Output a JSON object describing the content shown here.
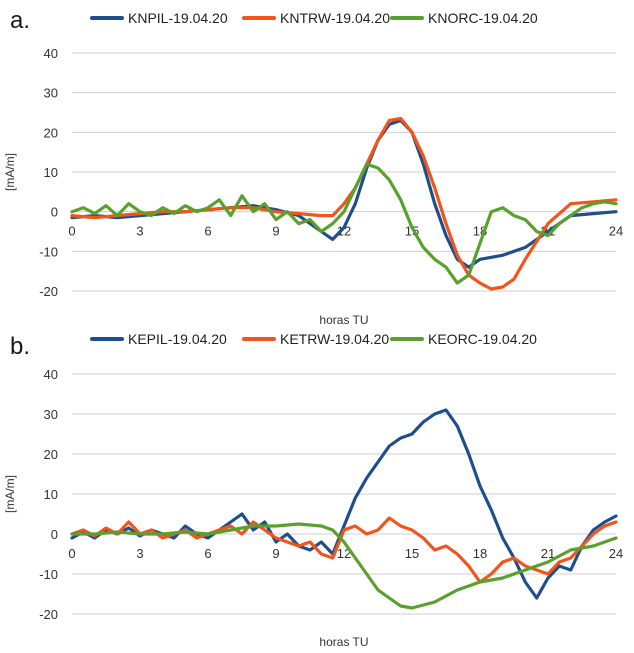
{
  "colors": {
    "blue": "#1F4E8C",
    "orange": "#F2541B",
    "green": "#5AA02C",
    "grid": "#cfcfcf"
  },
  "chart_data": [
    {
      "type": "line",
      "panel_label": "a.",
      "xlabel": "horas TU",
      "ylabel": "[mA/m]",
      "xlim": [
        0,
        24
      ],
      "ylim": [
        -20,
        40
      ],
      "x_ticks": [
        "0",
        "3",
        "6",
        "9",
        "12",
        "15",
        "18",
        "21",
        "24"
      ],
      "y_ticks": [
        "40",
        "30",
        "20",
        "10",
        "0",
        "-10",
        "-20"
      ],
      "grid": true,
      "legend_position": "top",
      "series": [
        {
          "name": "KNPIL-19.04.20",
          "color": "#1F4E8C",
          "x": [
            0,
            1,
            2,
            3,
            4,
            5,
            6,
            7,
            8,
            9,
            10,
            11,
            11.5,
            12,
            12.5,
            13,
            13.5,
            14,
            14.5,
            15,
            15.5,
            16,
            16.5,
            17,
            17.5,
            18,
            19,
            20,
            21,
            22,
            23,
            24
          ],
          "y": [
            -1.5,
            -1,
            -1.5,
            -1,
            -0.5,
            0,
            0.5,
            1,
            1.5,
            0.5,
            -1,
            -5,
            -7,
            -4,
            2,
            11,
            18,
            22,
            23,
            20,
            12,
            2,
            -6,
            -12,
            -14,
            -12,
            -11,
            -9,
            -5,
            -1,
            -0.5,
            0
          ]
        },
        {
          "name": "KNTRW-19.04.20",
          "color": "#F2541B",
          "x": [
            0,
            1,
            2,
            3,
            4,
            5,
            6,
            7,
            8,
            9,
            10,
            11,
            11.5,
            12,
            12.5,
            13,
            13.5,
            14,
            14.5,
            15,
            15.5,
            16,
            16.5,
            17,
            17.5,
            18,
            18.5,
            19,
            19.5,
            20,
            21,
            22,
            23,
            24
          ],
          "y": [
            -1,
            -1.5,
            -1,
            -0.5,
            0,
            0,
            0.5,
            1,
            1,
            0,
            -0.5,
            -1,
            -1,
            2,
            6,
            12,
            18,
            23,
            23.5,
            20,
            14,
            6,
            -3,
            -11,
            -16,
            -18,
            -19.5,
            -19,
            -17,
            -12,
            -3,
            2,
            2.5,
            3
          ]
        },
        {
          "name": "KNORC-19.04.20",
          "color": "#5AA02C",
          "x": [
            0,
            0.5,
            1,
            1.5,
            2,
            2.5,
            3,
            3.5,
            4,
            4.5,
            5,
            5.5,
            6,
            6.5,
            7,
            7.5,
            8,
            8.5,
            9,
            9.5,
            10,
            10.5,
            11,
            11.5,
            12,
            12.5,
            13,
            13.5,
            14,
            14.5,
            15,
            15.5,
            16,
            16.5,
            17,
            17.5,
            18,
            18.5,
            19,
            19.5,
            20,
            20.5,
            21,
            21.5,
            22,
            22.5,
            23,
            23.5,
            24
          ],
          "y": [
            0,
            1,
            -0.5,
            1.5,
            -1,
            2,
            0,
            -1,
            1,
            -0.5,
            1.5,
            0,
            1,
            3,
            -1,
            4,
            0,
            2,
            -2,
            0,
            -3,
            -2,
            -5,
            -3,
            0,
            6,
            12,
            11,
            8,
            3,
            -4,
            -9,
            -12,
            -14,
            -18,
            -16,
            -8,
            0,
            1,
            -1,
            -2,
            -5,
            -6,
            -3,
            -1,
            1,
            2,
            2.5,
            2
          ]
        }
      ]
    },
    {
      "type": "line",
      "panel_label": "b.",
      "xlabel": "horas TU",
      "ylabel": "[mA/m]",
      "xlim": [
        0,
        24
      ],
      "ylim": [
        -20,
        40
      ],
      "x_ticks": [
        "0",
        "3",
        "6",
        "9",
        "12",
        "15",
        "18",
        "21",
        "24"
      ],
      "y_ticks": [
        "40",
        "30",
        "20",
        "10",
        "0",
        "-10",
        "-20"
      ],
      "grid": true,
      "legend_position": "top",
      "series": [
        {
          "name": "KEPIL-19.04.20",
          "color": "#1F4E8C",
          "x": [
            0,
            0.5,
            1,
            1.5,
            2,
            2.5,
            3,
            3.5,
            4,
            4.5,
            5,
            5.5,
            6,
            6.5,
            7,
            7.5,
            8,
            8.5,
            9,
            9.5,
            10,
            10.5,
            11,
            11.5,
            12,
            12.5,
            13,
            13.5,
            14,
            14.5,
            15,
            15.5,
            16,
            16.5,
            17,
            17.5,
            18,
            18.5,
            19,
            19.5,
            20,
            20.5,
            21,
            21.5,
            22,
            22.5,
            23,
            23.5,
            24
          ],
          "y": [
            -1,
            0.5,
            -1,
            1,
            0,
            1.5,
            -0.5,
            1,
            0,
            -1,
            2,
            0,
            -1,
            1,
            3,
            5,
            1,
            3,
            -2,
            0,
            -3,
            -4,
            -2,
            -5,
            2,
            9,
            14,
            18,
            22,
            24,
            25,
            28,
            30,
            31,
            27,
            20,
            12,
            6,
            -1,
            -6,
            -12,
            -16,
            -11,
            -8,
            -9,
            -3,
            1,
            3,
            4.5
          ]
        },
        {
          "name": "KETRW-19.04.20",
          "color": "#F2541B",
          "x": [
            0,
            0.5,
            1,
            1.5,
            2,
            2.5,
            3,
            3.5,
            4,
            4.5,
            5,
            5.5,
            6,
            6.5,
            7,
            7.5,
            8,
            8.5,
            9,
            9.5,
            10,
            10.5,
            11,
            11.5,
            12,
            12.5,
            13,
            13.5,
            14,
            14.5,
            15,
            15.5,
            16,
            16.5,
            17,
            17.5,
            18,
            18.5,
            19,
            19.5,
            20,
            20.5,
            21,
            21.5,
            22,
            22.5,
            23,
            23.5,
            24
          ],
          "y": [
            0,
            1,
            -0.5,
            1.5,
            0,
            3,
            0,
            1,
            -1,
            0,
            1,
            -1,
            0,
            1,
            2,
            0,
            3,
            1,
            -1,
            -2,
            -3,
            -2,
            -5,
            -6,
            1,
            2,
            0,
            1,
            4,
            2,
            1,
            -1,
            -4,
            -3,
            -5,
            -8,
            -12,
            -10,
            -7,
            -6,
            -8,
            -9,
            -10,
            -7,
            -6,
            -3,
            0,
            2,
            3
          ]
        },
        {
          "name": "KEORC-19.04.20",
          "color": "#5AA02C",
          "x": [
            0,
            1,
            2,
            3,
            4,
            5,
            6,
            7,
            8,
            9,
            10,
            11,
            11.5,
            12,
            12.5,
            13,
            13.5,
            14,
            14.5,
            15,
            16,
            17,
            18,
            19,
            20,
            21,
            22,
            23,
            24
          ],
          "y": [
            0,
            0,
            0.5,
            0,
            0,
            0.5,
            0,
            1,
            2,
            2,
            2.5,
            2,
            1,
            -2,
            -6,
            -10,
            -14,
            -16,
            -18,
            -18.5,
            -17,
            -14,
            -12,
            -11,
            -9,
            -7,
            -4,
            -3,
            -1
          ]
        }
      ]
    }
  ]
}
